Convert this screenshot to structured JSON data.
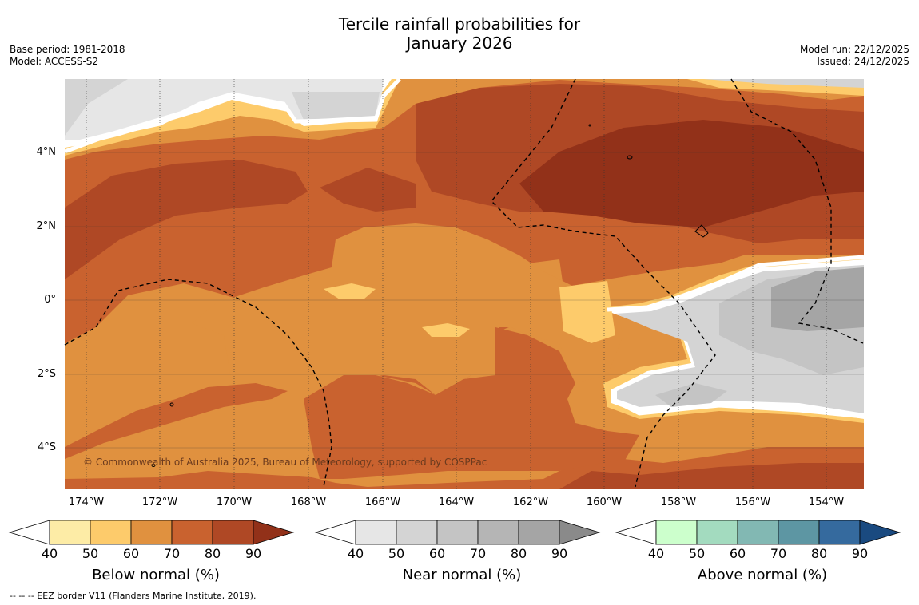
{
  "header": {
    "title_line1": "Tercile rainfall probabilities for",
    "title_line2": "January 2026",
    "base_period": "Base period: 1981-2018",
    "model": "Model: ACCESS-S2",
    "model_run": "Model run: 22/12/2025",
    "issued": "Issued: 24/12/2025"
  },
  "map": {
    "lat_labels": [
      "4°N",
      "2°N",
      "0°",
      "2°S",
      "4°S"
    ],
    "lon_labels": [
      "174°W",
      "172°W",
      "170°W",
      "168°W",
      "166°W",
      "164°W",
      "162°W",
      "160°W",
      "158°W",
      "156°W",
      "154°W"
    ],
    "copyright": "© Commonwealth of Australia 2025, Bureau of Meteorology, supported by COSPPac"
  },
  "colorbars": [
    {
      "label": "Below normal (%)",
      "ticks": [
        "40",
        "50",
        "60",
        "70",
        "80",
        "90"
      ],
      "colors": [
        "#ffffff",
        "#fdeca6",
        "#fdcb6b",
        "#e0913f",
        "#c9622f",
        "#af4825",
        "#923119"
      ]
    },
    {
      "label": "Near normal (%)",
      "ticks": [
        "40",
        "50",
        "60",
        "70",
        "80",
        "90"
      ],
      "colors": [
        "#ffffff",
        "#e6e6e6",
        "#d4d4d4",
        "#c4c4c4",
        "#b5b5b5",
        "#a5a5a5",
        "#8a8a8a"
      ]
    },
    {
      "label": "Above normal (%)",
      "ticks": [
        "40",
        "50",
        "60",
        "70",
        "80",
        "90"
      ],
      "colors": [
        "#ffffff",
        "#ccffcc",
        "#a3dbbf",
        "#82b8b3",
        "#5d96a3",
        "#356a9e",
        "#1a4a80"
      ]
    }
  ],
  "footnote": "-- -- -- EEZ border V11 (Flanders Marine Institute, 2019)."
}
